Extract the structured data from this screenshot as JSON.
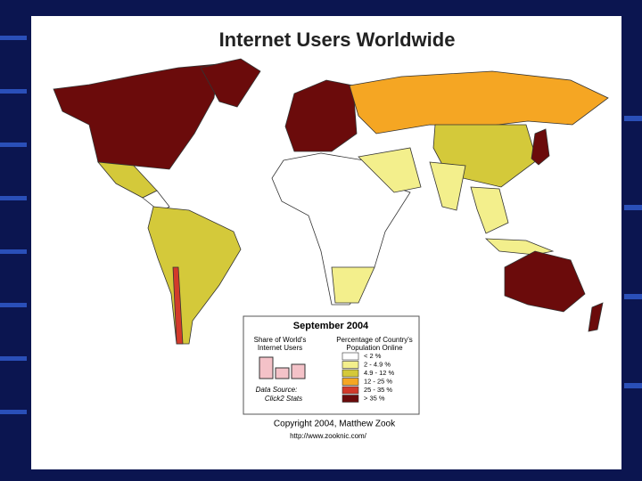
{
  "title": "Internet Users Worldwide",
  "legend": {
    "date": "September 2004",
    "share_title": [
      "Share of World's",
      "Internet Users"
    ],
    "source": [
      "Data Source:",
      "Click2 Stats"
    ],
    "pct_title": [
      "Percentage of Country's",
      "Population Online"
    ],
    "classes": [
      {
        "label": "< 2 %",
        "color": "#ffffff"
      },
      {
        "label": "2 - 4.9 %",
        "color": "#f3ef8c"
      },
      {
        "label": "4.9 - 12 %",
        "color": "#d4c93a"
      },
      {
        "label": "12 - 25 %",
        "color": "#f5a623"
      },
      {
        "label": "25 - 35 %",
        "color": "#d23a2a"
      },
      {
        "label": "> 35 %",
        "color": "#6b0b0b"
      }
    ]
  },
  "credit": [
    "Copyright 2004, Matthew Zook",
    "http://www.zooknic.com/"
  ]
}
